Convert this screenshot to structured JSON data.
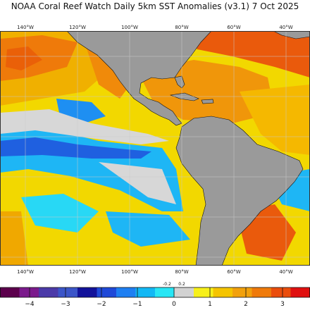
{
  "title": "NOAA Coral Reef Watch Daily 5km SST Anomalies  (v3.1)    7 Oct 2025",
  "longitude_labels": [
    "140°W",
    "120°W",
    "100°W",
    "80°W",
    "60°W",
    "40°W"
  ],
  "colorbar": {
    "labels": [
      "−4",
      "−3",
      "−2",
      "−1",
      "0",
      "1",
      "2",
      "3"
    ],
    "small_labels": [
      "-0.2",
      "0.2"
    ],
    "colors": [
      "#5c004c",
      "#7b1a8c",
      "#4b3aa8",
      "#3b55c8",
      "#12129a",
      "#1f49d8",
      "#1e7ff2",
      "#12b8f5",
      "#28e6f5",
      "#d2d2d2",
      "#f7f01a",
      "#f5c400",
      "#f2a10c",
      "#ef7a0a",
      "#ea4d0c",
      "#e01010"
    ]
  },
  "colors": {
    "land": "#9a9a9a",
    "grid": "#c9c9c9",
    "warm": "#f5c400",
    "hot": "#ef6b0a",
    "cool": "#1eb6f5",
    "cold": "#1f49d8",
    "neutral": "#d7d7d7"
  }
}
